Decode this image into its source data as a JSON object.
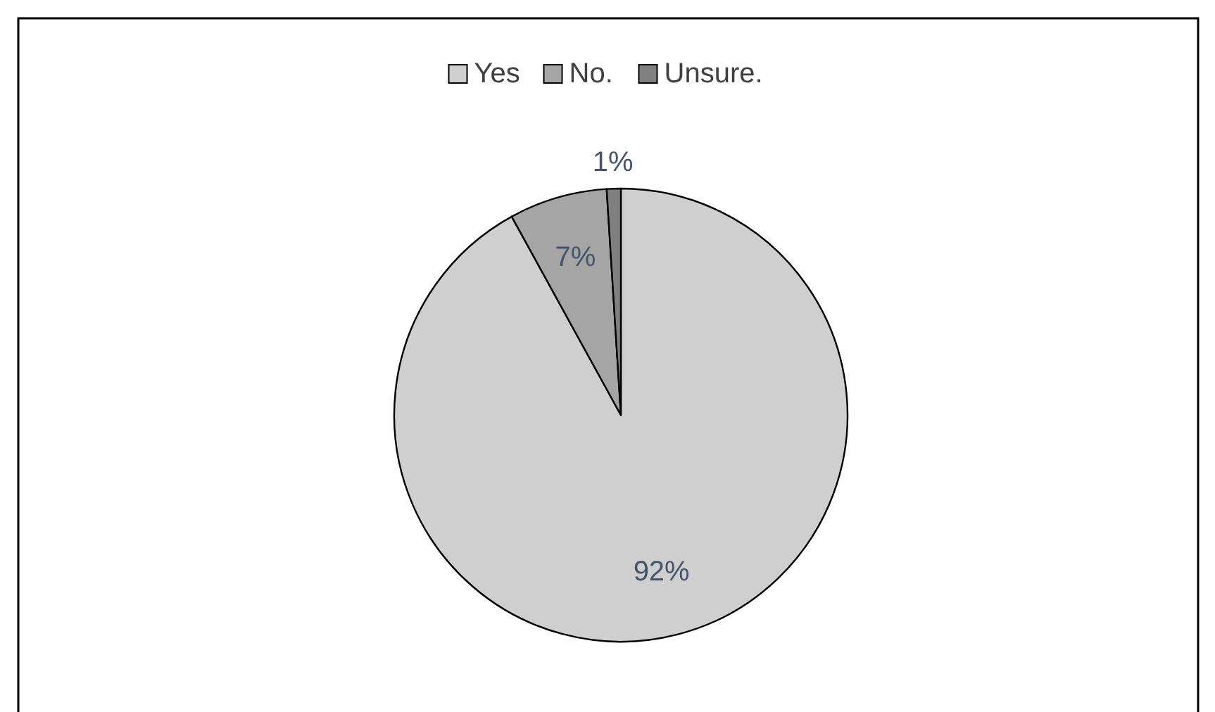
{
  "chart_data": {
    "type": "pie",
    "categories": [
      "Yes",
      "No.",
      "Unsure."
    ],
    "values": [
      92,
      7,
      1
    ],
    "value_labels": [
      "92%",
      "7%",
      "1%"
    ],
    "colors": [
      "#cfcfcf",
      "#a5a5a5",
      "#808080"
    ],
    "legend": "top"
  }
}
